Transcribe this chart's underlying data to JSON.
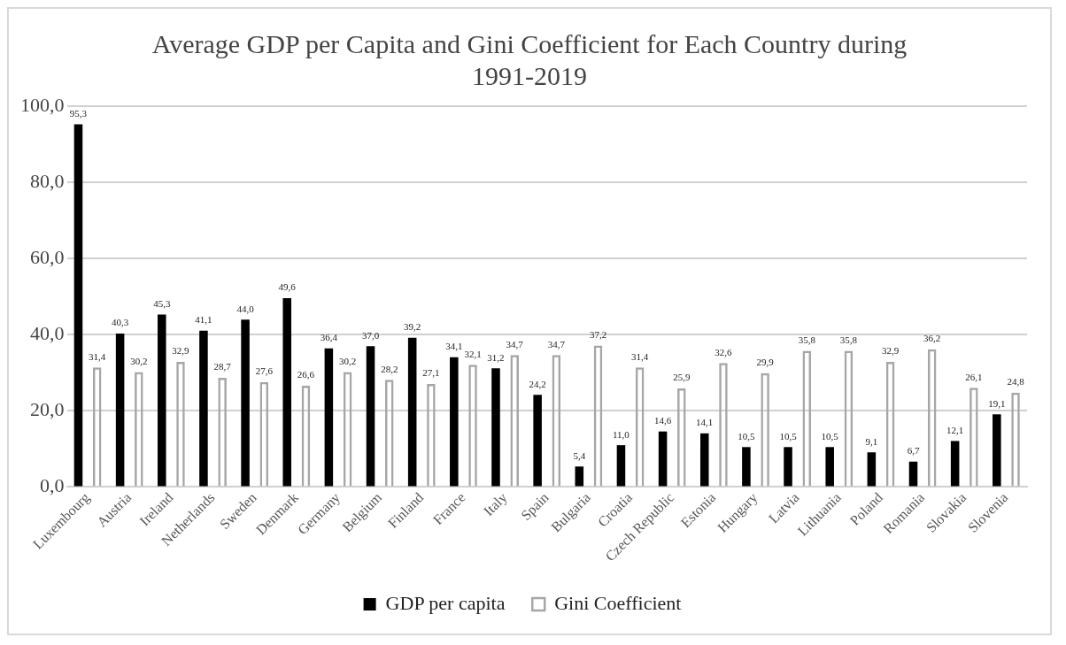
{
  "chart_data": {
    "type": "bar",
    "title": "Average GDP per Capita and Gini Coefficient for Each Country during 1991-2019",
    "categories": [
      "Luxembourg",
      "Austria",
      "Ireland",
      "Netherlands",
      "Sweden",
      "Denmark",
      "Germany",
      "Belgium",
      "Finland",
      "France",
      "Italy",
      "Spain",
      "Bulgaria",
      "Croatia",
      "Czech Republic",
      "Estonia",
      "Hungary",
      "Latvia",
      "Lithuania",
      "Poland",
      "Romania",
      "Slovakia",
      "Slovenia"
    ],
    "series": [
      {
        "name": "GDP per capita",
        "color": "#000000",
        "values": [
          95.3,
          40.3,
          45.3,
          41.1,
          44.0,
          49.6,
          36.4,
          37.0,
          39.2,
          34.1,
          31.2,
          24.2,
          5.4,
          11.0,
          14.6,
          14.1,
          10.5,
          10.5,
          10.5,
          9.1,
          6.7,
          12.1,
          19.1
        ],
        "value_labels": [
          "95,3",
          "40,3",
          "45,3",
          "41,1",
          "44,0",
          "49,6",
          "36,4",
          "37,0",
          "39,2",
          "34,1",
          "31,2",
          "24,2",
          "5,4",
          "11,0",
          "14,6",
          "14,1",
          "10,5",
          "10,5",
          "10,5",
          "9,1",
          "6,7",
          "12,1",
          "19,1"
        ]
      },
      {
        "name": "Gini Coefficient",
        "color": "#a6a6a6",
        "values": [
          31.4,
          30.2,
          32.9,
          28.7,
          27.6,
          26.6,
          30.2,
          28.2,
          27.1,
          32.1,
          34.7,
          34.7,
          37.2,
          31.4,
          25.9,
          32.6,
          29.9,
          35.8,
          35.8,
          32.9,
          36.2,
          26.1,
          24.8
        ],
        "value_labels": [
          "31,4",
          "30,2",
          "32,9",
          "28,7",
          "27,6",
          "26,6",
          "30,2",
          "28,2",
          "27,1",
          "32,1",
          "34,7",
          "34,7",
          "37,2",
          "31,4",
          "25,9",
          "32,6",
          "29,9",
          "35,8",
          "35,8",
          "32,9",
          "36,2",
          "26,1",
          "24,8"
        ]
      }
    ],
    "ylim": [
      0,
      100
    ],
    "yticks": [
      {
        "value": 0,
        "label": "0,0"
      },
      {
        "value": 20,
        "label": "20,0"
      },
      {
        "value": 40,
        "label": "40,0"
      },
      {
        "value": 60,
        "label": "60,0"
      },
      {
        "value": 80,
        "label": "80,0"
      },
      {
        "value": 100,
        "label": "100,0"
      }
    ],
    "grid": "y",
    "legend": "bottom"
  }
}
